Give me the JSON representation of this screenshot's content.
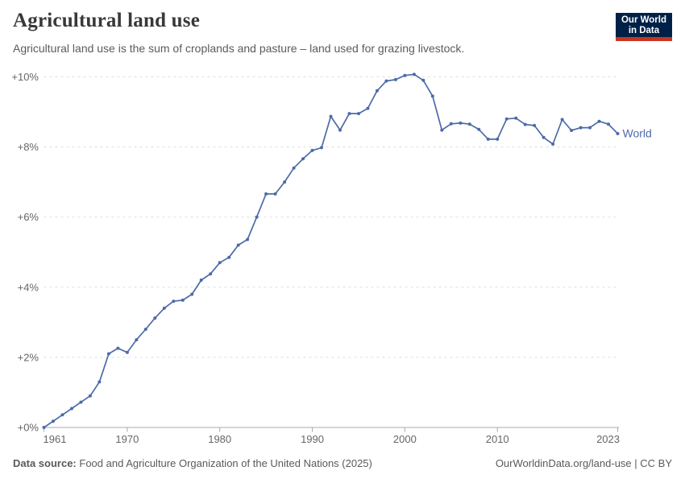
{
  "header": {
    "title": "Agricultural land use",
    "subtitle": "Agricultural land use is the sum of croplands and pasture – land used for grazing livestock.",
    "logo": {
      "line1": "Our World",
      "line2": "in Data"
    }
  },
  "chart_data": {
    "type": "line",
    "title": "Agricultural land use",
    "xlabel": "",
    "ylabel": "",
    "x_start": 1961,
    "x_end": 2023,
    "ylim": [
      0,
      10
    ],
    "y_unit": "%",
    "grid": "horizontal-dashed",
    "legend": "end-of-line-label",
    "yticks": [
      {
        "value": 0,
        "label": "+0%"
      },
      {
        "value": 2,
        "label": "+2%"
      },
      {
        "value": 4,
        "label": "+4%"
      },
      {
        "value": 6,
        "label": "+6%"
      },
      {
        "value": 8,
        "label": "+8%"
      },
      {
        "value": 10,
        "label": "+10%"
      }
    ],
    "xticks": [
      1961,
      1970,
      1980,
      1990,
      2000,
      2010,
      2023
    ],
    "series": [
      {
        "name": "World",
        "color": "#4c6ba8",
        "marker": "circle",
        "values": [
          0,
          0.18,
          0.36,
          0.54,
          0.72,
          0.9,
          1.3,
          2.1,
          2.26,
          2.14,
          2.5,
          2.8,
          3.12,
          3.4,
          3.6,
          3.63,
          3.8,
          4.2,
          4.38,
          4.7,
          4.85,
          5.2,
          5.36,
          6.0,
          6.66,
          6.66,
          7.0,
          7.4,
          7.66,
          7.9,
          7.98,
          8.87,
          8.48,
          8.95,
          8.95,
          9.1,
          9.6,
          9.88,
          9.92,
          10.04,
          10.07,
          9.9,
          9.45,
          8.48,
          8.66,
          8.68,
          8.65,
          8.5,
          8.22,
          8.22,
          8.8,
          8.82,
          8.64,
          8.61,
          8.27,
          8.08,
          8.78,
          8.47,
          8.55,
          8.55,
          8.73,
          8.65,
          8.38
        ]
      }
    ]
  },
  "footer": {
    "data_source_label": "Data source:",
    "data_source_text": "Food and Agriculture Organization of the United Nations (2025)",
    "attribution_url": "OurWorldinData.org/land-use",
    "attribution_license": "| CC BY"
  },
  "colors": {
    "line": "#4c6ba8",
    "logo_navy": "#002147",
    "logo_red": "#c9341f",
    "grid": "#dedede",
    "axis": "#a9a9a9",
    "tick_text": "#666666",
    "muted_text": "#5b5b5b"
  }
}
